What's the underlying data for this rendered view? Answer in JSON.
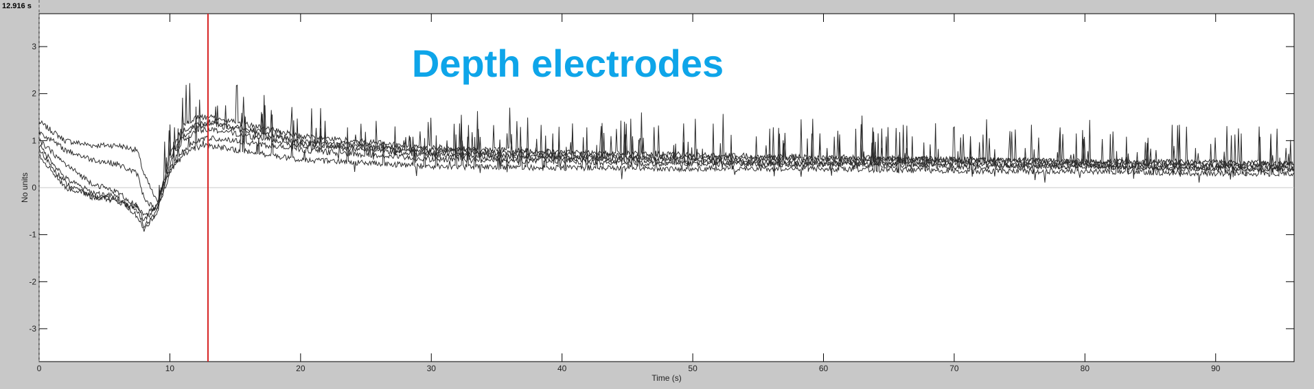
{
  "cursor": {
    "readout": "12.916 s",
    "time": 12.916
  },
  "colors": {
    "background": "#c8c8c8",
    "plot": "#ffffff",
    "trace": "#2b2b2b",
    "cursor": "#d62020",
    "title": "#0ea5e9",
    "zero_line": "#c8c8c8"
  },
  "chart_data": {
    "type": "line",
    "title": "Depth electrodes",
    "xlabel": "Time (s)",
    "ylabel": "No units",
    "xlim": [
      0,
      96
    ],
    "ylim": [
      -3.7,
      3.7
    ],
    "x_ticks": [
      0,
      10,
      20,
      30,
      40,
      50,
      60,
      70,
      80,
      90
    ],
    "y_ticks": [
      3,
      2,
      1,
      0,
      -1,
      -2,
      -3
    ],
    "zero_line": true,
    "grid": false,
    "x": [
      0,
      2,
      4,
      6,
      7.5,
      8,
      9,
      10,
      11,
      12,
      13,
      15,
      20,
      30,
      40,
      50,
      60,
      70,
      80,
      90,
      96
    ],
    "series": [
      {
        "values": [
          1.4,
          1.0,
          0.9,
          0.9,
          0.8,
          0.3,
          -0.3,
          0.4,
          0.7,
          0.85,
          0.9,
          0.8,
          0.6,
          0.45,
          0.42,
          0.4,
          0.4,
          0.35,
          0.35,
          0.3,
          0.3
        ]
      },
      {
        "values": [
          1.2,
          0.8,
          0.6,
          0.5,
          0.3,
          -0.2,
          -0.5,
          0.3,
          0.8,
          1.0,
          1.05,
          1.0,
          0.8,
          0.6,
          0.55,
          0.5,
          0.5,
          0.45,
          0.45,
          0.4,
          0.4
        ]
      },
      {
        "values": [
          1.0,
          0.5,
          0.1,
          -0.1,
          -0.4,
          -0.7,
          -0.4,
          0.6,
          1.2,
          1.35,
          1.4,
          1.3,
          1.0,
          0.8,
          0.7,
          0.65,
          0.6,
          0.6,
          0.55,
          0.5,
          0.5
        ]
      },
      {
        "values": [
          0.9,
          0.2,
          -0.1,
          -0.2,
          -0.6,
          -0.9,
          -0.5,
          0.7,
          1.3,
          1.5,
          1.5,
          1.4,
          1.1,
          0.85,
          0.75,
          0.7,
          0.65,
          0.6,
          0.55,
          0.55,
          0.5
        ]
      },
      {
        "values": [
          0.8,
          0.1,
          -0.2,
          -0.25,
          -0.5,
          -0.8,
          -0.6,
          0.5,
          1.1,
          1.3,
          1.35,
          1.25,
          0.95,
          0.75,
          0.65,
          0.6,
          0.55,
          0.55,
          0.5,
          0.45,
          0.45
        ]
      },
      {
        "values": [
          0.7,
          0.0,
          -0.15,
          -0.3,
          -0.4,
          -0.6,
          -0.4,
          0.4,
          1.0,
          1.2,
          1.25,
          1.15,
          0.9,
          0.7,
          0.6,
          0.55,
          0.5,
          0.5,
          0.45,
          0.4,
          0.4
        ]
      }
    ]
  }
}
